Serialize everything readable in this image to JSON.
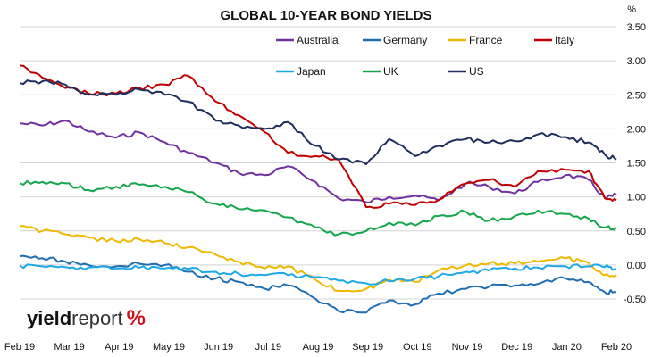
{
  "chart_data": {
    "type": "line",
    "title": "GLOBAL 10-YEAR BOND YIELDS",
    "y_unit": "%",
    "ylim": [
      -0.5,
      3.5
    ],
    "yticks": [
      "3.50",
      "3.00",
      "2.50",
      "2.00",
      "1.50",
      "1.00",
      "0.50",
      "0.00",
      "-0.50"
    ],
    "xlim": [
      "2019-02-01",
      "2020-02-01"
    ],
    "xticks": [
      "Feb 19",
      "Mar 19",
      "Apr 19",
      "May 19",
      "Jun 19",
      "Jul 19",
      "Aug 19",
      "Sep 19",
      "Oct 19",
      "Nov 19",
      "Dec 19",
      "Jan 20",
      "Feb 20"
    ],
    "grid": true,
    "legend_position": "top-right",
    "series": [
      {
        "name": "Australia",
        "color": "#7030a0",
        "x": [
          "2019-02-01",
          "2019-02-15",
          "2019-03-01",
          "2019-03-15",
          "2019-04-01",
          "2019-04-15",
          "2019-05-01",
          "2019-05-15",
          "2019-06-01",
          "2019-06-15",
          "2019-07-01",
          "2019-07-15",
          "2019-08-01",
          "2019-08-15",
          "2019-09-01",
          "2019-09-15",
          "2019-10-01",
          "2019-10-15",
          "2019-11-01",
          "2019-11-15",
          "2019-12-01",
          "2019-12-15",
          "2020-01-01",
          "2020-01-15",
          "2020-01-25",
          "2020-02-01"
        ],
        "values": [
          2.08,
          2.05,
          2.12,
          1.96,
          1.87,
          1.95,
          1.8,
          1.65,
          1.5,
          1.35,
          1.32,
          1.45,
          1.22,
          0.98,
          0.92,
          1.0,
          1.02,
          0.95,
          1.2,
          1.15,
          1.05,
          1.22,
          1.32,
          1.25,
          0.98,
          1.03
        ]
      },
      {
        "name": "Germany",
        "color": "#1f6eb4",
        "x": [
          "2019-02-01",
          "2019-02-15",
          "2019-03-01",
          "2019-03-15",
          "2019-04-01",
          "2019-04-15",
          "2019-05-01",
          "2019-05-15",
          "2019-06-01",
          "2019-06-15",
          "2019-07-01",
          "2019-07-15",
          "2019-08-01",
          "2019-08-15",
          "2019-09-01",
          "2019-09-15",
          "2019-10-01",
          "2019-10-15",
          "2019-11-01",
          "2019-11-15",
          "2019-12-01",
          "2019-12-15",
          "2020-01-01",
          "2020-01-15",
          "2020-01-25",
          "2020-02-01"
        ],
        "values": [
          0.13,
          0.1,
          0.05,
          0.0,
          -0.02,
          0.02,
          0.0,
          -0.1,
          -0.2,
          -0.25,
          -0.35,
          -0.3,
          -0.5,
          -0.68,
          -0.7,
          -0.52,
          -0.58,
          -0.42,
          -0.35,
          -0.32,
          -0.3,
          -0.28,
          -0.2,
          -0.25,
          -0.4,
          -0.4
        ]
      },
      {
        "name": "France",
        "color": "#f0b800",
        "x": [
          "2019-02-01",
          "2019-02-15",
          "2019-03-01",
          "2019-03-15",
          "2019-04-01",
          "2019-04-15",
          "2019-05-01",
          "2019-05-15",
          "2019-06-01",
          "2019-06-15",
          "2019-07-01",
          "2019-07-15",
          "2019-08-01",
          "2019-08-15",
          "2019-09-01",
          "2019-09-15",
          "2019-10-01",
          "2019-10-15",
          "2019-11-01",
          "2019-11-15",
          "2019-12-01",
          "2019-12-15",
          "2020-01-01",
          "2020-01-15",
          "2020-01-25",
          "2020-02-01"
        ],
        "values": [
          0.57,
          0.5,
          0.45,
          0.4,
          0.35,
          0.38,
          0.32,
          0.26,
          0.15,
          0.05,
          -0.05,
          -0.02,
          -0.22,
          -0.38,
          -0.35,
          -0.22,
          -0.25,
          -0.08,
          0.0,
          0.02,
          0.02,
          0.05,
          0.1,
          0.03,
          -0.15,
          -0.15
        ]
      },
      {
        "name": "Italy",
        "color": "#c00000",
        "x": [
          "2019-02-01",
          "2019-02-15",
          "2019-03-01",
          "2019-03-15",
          "2019-04-01",
          "2019-04-15",
          "2019-05-01",
          "2019-05-15",
          "2019-06-01",
          "2019-06-15",
          "2019-07-01",
          "2019-07-15",
          "2019-08-01",
          "2019-08-15",
          "2019-09-01",
          "2019-09-15",
          "2019-10-01",
          "2019-10-15",
          "2019-11-01",
          "2019-11-15",
          "2019-12-01",
          "2019-12-15",
          "2020-01-01",
          "2020-01-15",
          "2020-01-25",
          "2020-02-01"
        ],
        "values": [
          2.93,
          2.75,
          2.6,
          2.52,
          2.52,
          2.6,
          2.65,
          2.78,
          2.4,
          2.2,
          1.95,
          1.65,
          1.6,
          1.55,
          0.85,
          0.9,
          0.88,
          0.95,
          1.2,
          1.25,
          1.15,
          1.38,
          1.4,
          1.38,
          0.98,
          0.95
        ]
      },
      {
        "name": "Japan",
        "color": "#1ea9e6",
        "x": [
          "2019-02-01",
          "2019-02-15",
          "2019-03-01",
          "2019-03-15",
          "2019-04-01",
          "2019-04-15",
          "2019-05-01",
          "2019-05-15",
          "2019-06-01",
          "2019-06-15",
          "2019-07-01",
          "2019-07-15",
          "2019-08-01",
          "2019-08-15",
          "2019-09-01",
          "2019-09-15",
          "2019-10-01",
          "2019-10-15",
          "2019-11-01",
          "2019-11-15",
          "2019-12-01",
          "2019-12-15",
          "2020-01-01",
          "2020-01-15",
          "2020-01-25",
          "2020-02-01"
        ],
        "values": [
          -0.01,
          -0.02,
          -0.03,
          -0.04,
          -0.05,
          -0.04,
          -0.05,
          -0.06,
          -0.1,
          -0.13,
          -0.15,
          -0.15,
          -0.18,
          -0.23,
          -0.27,
          -0.24,
          -0.2,
          -0.17,
          -0.1,
          -0.08,
          -0.05,
          -0.04,
          -0.02,
          -0.02,
          -0.03,
          -0.06
        ]
      },
      {
        "name": "UK",
        "color": "#13a64a",
        "x": [
          "2019-02-01",
          "2019-02-15",
          "2019-03-01",
          "2019-03-15",
          "2019-04-01",
          "2019-04-15",
          "2019-05-01",
          "2019-05-15",
          "2019-06-01",
          "2019-06-15",
          "2019-07-01",
          "2019-07-15",
          "2019-08-01",
          "2019-08-15",
          "2019-09-01",
          "2019-09-15",
          "2019-10-01",
          "2019-10-15",
          "2019-11-01",
          "2019-11-15",
          "2019-12-01",
          "2019-12-15",
          "2020-01-01",
          "2020-01-15",
          "2020-01-25",
          "2020-02-01"
        ],
        "values": [
          1.2,
          1.22,
          1.2,
          1.1,
          1.15,
          1.18,
          1.15,
          1.07,
          0.9,
          0.82,
          0.8,
          0.7,
          0.55,
          0.45,
          0.5,
          0.62,
          0.58,
          0.72,
          0.78,
          0.65,
          0.72,
          0.8,
          0.75,
          0.68,
          0.55,
          0.55
        ]
      },
      {
        "name": "US",
        "color": "#1f2d5c",
        "x": [
          "2019-02-01",
          "2019-02-15",
          "2019-03-01",
          "2019-03-15",
          "2019-04-01",
          "2019-04-15",
          "2019-05-01",
          "2019-05-15",
          "2019-06-01",
          "2019-06-15",
          "2019-07-01",
          "2019-07-15",
          "2019-08-01",
          "2019-08-15",
          "2019-09-01",
          "2019-09-15",
          "2019-10-01",
          "2019-10-15",
          "2019-11-01",
          "2019-11-15",
          "2019-12-01",
          "2019-12-15",
          "2020-01-01",
          "2020-01-15",
          "2020-01-25",
          "2020-02-01"
        ],
        "values": [
          2.67,
          2.7,
          2.65,
          2.5,
          2.5,
          2.58,
          2.5,
          2.4,
          2.12,
          2.05,
          2.0,
          2.1,
          1.75,
          1.55,
          1.48,
          1.85,
          1.6,
          1.75,
          1.85,
          1.8,
          1.82,
          1.92,
          1.88,
          1.8,
          1.62,
          1.55
        ]
      }
    ]
  },
  "logo": {
    "bold": "yield",
    "regular": "report",
    "symbol": "%"
  }
}
